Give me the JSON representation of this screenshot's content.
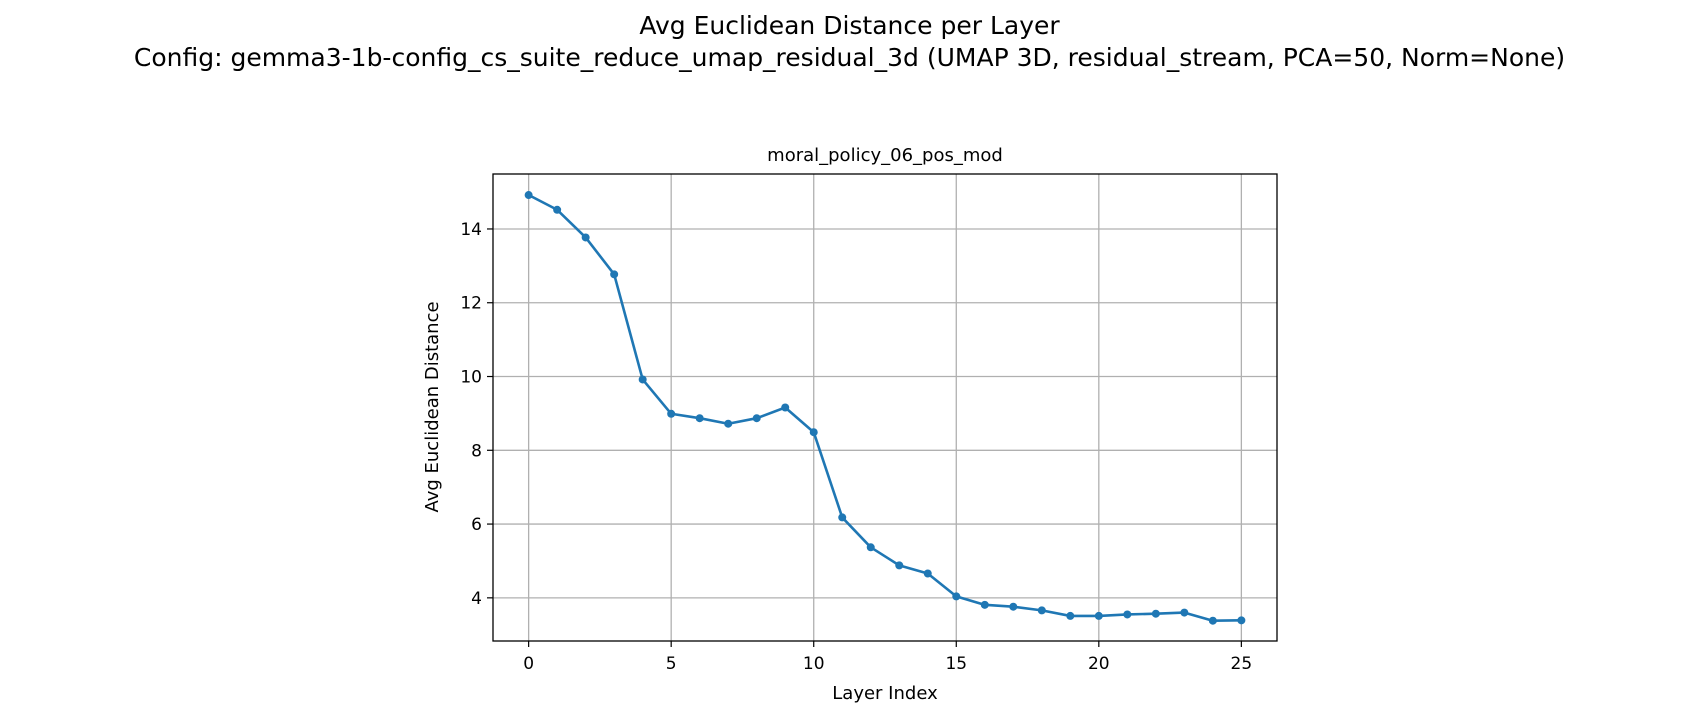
{
  "figure": {
    "title_line1": "Avg Euclidean Distance per Layer",
    "title_line2": "Config: gemma3-1b-config_cs_suite_reduce_umap_residual_3d (UMAP 3D, residual_stream, PCA=50, Norm=None)"
  },
  "chart_data": {
    "type": "line",
    "title": "moral_policy_06_pos_mod",
    "xlabel": "Layer Index",
    "ylabel": "Avg Euclidean Distance",
    "x": [
      0,
      1,
      2,
      3,
      4,
      5,
      6,
      7,
      8,
      9,
      10,
      11,
      12,
      13,
      14,
      15,
      16,
      17,
      18,
      19,
      20,
      21,
      22,
      23,
      24,
      25
    ],
    "series": [
      {
        "values": [
          14.92,
          14.52,
          13.77,
          12.77,
          9.92,
          8.99,
          8.87,
          8.72,
          8.87,
          9.16,
          8.49,
          6.18,
          5.37,
          4.88,
          4.66,
          4.04,
          3.81,
          3.76,
          3.66,
          3.51,
          3.51,
          3.55,
          3.57,
          3.6,
          3.38,
          3.39
        ],
        "color": "#1f77b4"
      }
    ],
    "xlim": [
      -1.25,
      26.25
    ],
    "ylim": [
      2.83,
      15.49
    ],
    "xticks": [
      0,
      5,
      10,
      15,
      20,
      25
    ],
    "yticks": [
      4,
      6,
      8,
      10,
      12,
      14
    ],
    "grid": true,
    "grid_color": "#b0b0b0",
    "marker": "circle"
  }
}
